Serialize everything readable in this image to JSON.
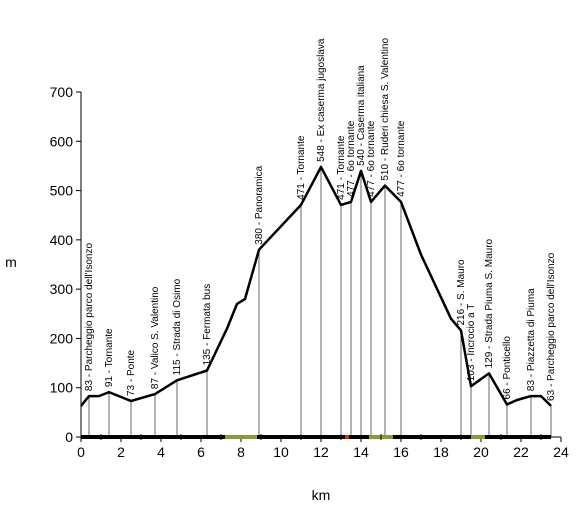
{
  "chart_data": {
    "type": "line",
    "title": "",
    "xlabel": "km",
    "ylabel": "m",
    "xlim": [
      0,
      24
    ],
    "ylim": [
      0,
      700
    ],
    "xticks": [
      "0",
      "2",
      "4",
      "6",
      "8",
      "10",
      "12",
      "14",
      "16",
      "18",
      "20",
      "22",
      "24"
    ],
    "yticks": [
      "0",
      "100",
      "200",
      "300",
      "400",
      "500",
      "600",
      "700"
    ],
    "grid": false,
    "line_color": "#000000",
    "bar_colors": {
      "road": "#000000",
      "gravel": "#8a9a3a",
      "marker": "#cc3300"
    },
    "series": [
      {
        "x": [
          0,
          0.4,
          0.9,
          1.4,
          2.5,
          3.7,
          4.8,
          6.3,
          7.3,
          7.8,
          8.2,
          8.9,
          11.0,
          12.0,
          13.0,
          13.5,
          14.0,
          14.5,
          15.2,
          16.0,
          17.0,
          18.5,
          19.0,
          19.5,
          20.4,
          21.3,
          21.8,
          22.5,
          23.0,
          23.5
        ],
        "y": [
          63,
          83,
          83,
          91,
          73,
          87,
          115,
          135,
          220,
          270,
          280,
          380,
          471,
          548,
          471,
          477,
          540,
          477,
          510,
          477,
          370,
          240,
          216,
          103,
          129,
          66,
          75,
          83,
          83,
          63
        ]
      }
    ],
    "annotations": [
      {
        "x": 0.4,
        "y": 83,
        "text": "83 - Parcheggio parco dell'Isonzo"
      },
      {
        "x": 1.4,
        "y": 91,
        "text": "91 - Tornante"
      },
      {
        "x": 2.5,
        "y": 73,
        "text": "73 - Ponte"
      },
      {
        "x": 3.7,
        "y": 87,
        "text": "87 - Valico S. Valentino"
      },
      {
        "x": 4.8,
        "y": 115,
        "text": "115 - Strada di Osimo"
      },
      {
        "x": 6.3,
        "y": 135,
        "text": "135 - Fermata bus"
      },
      {
        "x": 8.9,
        "y": 380,
        "text": "380 - Panoramica"
      },
      {
        "x": 11.0,
        "y": 471,
        "text": "471 - Tornante"
      },
      {
        "x": 12.0,
        "y": 548,
        "text": "548 - Ex caserma jugoslava"
      },
      {
        "x": 13.0,
        "y": 471,
        "text": "471 - Tornante"
      },
      {
        "x": 13.5,
        "y": 477,
        "text": "477 - 6o tornante"
      },
      {
        "x": 14.0,
        "y": 540,
        "text": "540 - Caserma italiana"
      },
      {
        "x": 14.5,
        "y": 477,
        "text": "477 - 6o tornante"
      },
      {
        "x": 15.2,
        "y": 510,
        "text": "510 - Ruderi chiesa S. Valentino"
      },
      {
        "x": 16.0,
        "y": 477,
        "text": "477 - 6o tornante"
      },
      {
        "x": 19.0,
        "y": 216,
        "text": "216 - S. Mauro"
      },
      {
        "x": 19.5,
        "y": 103,
        "text": "103 - Incrocio a T"
      },
      {
        "x": 20.4,
        "y": 129,
        "text": "129 - Strada Piuma S. Mauro"
      },
      {
        "x": 21.3,
        "y": 66,
        "text": "66 - Ponticello"
      },
      {
        "x": 22.5,
        "y": 83,
        "text": "83 - Piazzetta di Piuma"
      },
      {
        "x": 23.5,
        "y": 63,
        "text": "63 - Parcheggio parco dell'Isonzo"
      }
    ],
    "surface_segments": [
      {
        "from": 0,
        "to": 7.2,
        "kind": "road"
      },
      {
        "from": 7.2,
        "to": 8.8,
        "kind": "gravel"
      },
      {
        "from": 8.8,
        "to": 13.2,
        "kind": "road"
      },
      {
        "from": 13.2,
        "to": 13.4,
        "kind": "marker"
      },
      {
        "from": 13.4,
        "to": 14.4,
        "kind": "road"
      },
      {
        "from": 14.4,
        "to": 15.6,
        "kind": "gravel"
      },
      {
        "from": 15.6,
        "to": 19.5,
        "kind": "road"
      },
      {
        "from": 19.5,
        "to": 20.2,
        "kind": "gravel"
      },
      {
        "from": 20.2,
        "to": 23.5,
        "kind": "road"
      }
    ]
  }
}
